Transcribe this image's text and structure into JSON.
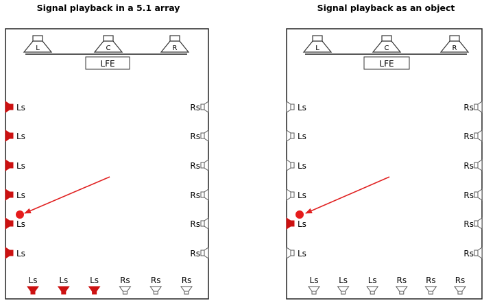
{
  "panels": [
    {
      "id": "array",
      "title": "Signal playback in a 5.1 array",
      "front_labels": [
        "L",
        "C",
        "R"
      ],
      "lfe_label": "LFE",
      "left_label": "Ls",
      "right_label": "Rs",
      "left_active": [
        true,
        true,
        true,
        true,
        true,
        true
      ],
      "right_active": [
        false,
        false,
        false,
        false,
        false,
        false
      ],
      "bottom_labels": [
        "Ls",
        "Ls",
        "Ls",
        "Rs",
        "Rs",
        "Rs"
      ],
      "bottom_active": [
        true,
        true,
        true,
        false,
        false,
        false
      ]
    },
    {
      "id": "object",
      "title": "Signal playback as an object",
      "front_labels": [
        "L",
        "C",
        "R"
      ],
      "lfe_label": "LFE",
      "left_label": "Ls",
      "right_label": "Rs",
      "left_active": [
        false,
        false,
        false,
        false,
        true,
        false
      ],
      "right_active": [
        false,
        false,
        false,
        false,
        false,
        false
      ],
      "bottom_labels": [
        "Ls",
        "Ls",
        "Ls",
        "Rs",
        "Rs",
        "Rs"
      ],
      "bottom_active": [
        false,
        false,
        false,
        false,
        false,
        false
      ]
    }
  ],
  "colors": {
    "active": "#cc1111",
    "source": "#e51c1c",
    "arrow": "#e02020",
    "outline": "#333333"
  }
}
